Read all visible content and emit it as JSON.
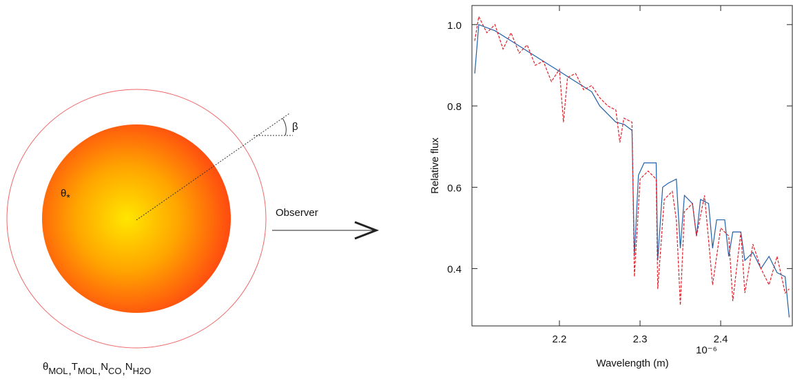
{
  "diagram": {
    "observer": "Observer",
    "beta": "β",
    "theta_star": {
      "symbol": "θ",
      "subscript": "*"
    },
    "separator": ",",
    "parameters": [
      {
        "symbol": "θ",
        "subscript": "MOL"
      },
      {
        "symbol": "T",
        "subscript": "MOL"
      },
      {
        "symbol": "N",
        "subscript": "CO"
      },
      {
        "symbol": "N",
        "subscript": "H2O"
      }
    ]
  },
  "chart_data": {
    "type": "line",
    "xlabel": "Wavelength (m)",
    "ylabel": "Relative flux",
    "x_exponent": "10⁻⁶",
    "xlim": [
      2.0915,
      2.4897
    ],
    "ylim": [
      0.259,
      1.047
    ],
    "xticks": [
      2.2,
      2.3,
      2.4
    ],
    "yticks": [
      0.4,
      0.6,
      0.8,
      {
        "value": 1,
        "label": "1.0"
      }
    ],
    "series": [
      {
        "color": "#1f5fa8",
        "dash": "solid",
        "x": [
          2.095,
          2.1,
          2.12,
          2.14,
          2.16,
          2.18,
          2.2,
          2.22,
          2.24,
          2.25,
          2.26,
          2.27,
          2.28,
          2.29,
          2.293,
          2.298,
          2.305,
          2.32,
          2.322,
          2.328,
          2.335,
          2.345,
          2.35,
          2.355,
          2.365,
          2.37,
          2.375,
          2.385,
          2.39,
          2.395,
          2.405,
          2.41,
          2.415,
          2.425,
          2.43,
          2.44,
          2.45,
          2.46,
          2.47,
          2.48,
          2.485
        ],
        "values": [
          0.88,
          1.0,
          0.985,
          0.96,
          0.935,
          0.91,
          0.885,
          0.86,
          0.835,
          0.8,
          0.78,
          0.76,
          0.755,
          0.74,
          0.43,
          0.63,
          0.66,
          0.66,
          0.42,
          0.6,
          0.61,
          0.62,
          0.45,
          0.58,
          0.56,
          0.48,
          0.57,
          0.56,
          0.45,
          0.52,
          0.52,
          0.43,
          0.49,
          0.49,
          0.42,
          0.44,
          0.4,
          0.43,
          0.39,
          0.38,
          0.28
        ]
      },
      {
        "color": "#e0202a",
        "dash": "dashed",
        "x": [
          2.095,
          2.1,
          2.11,
          2.12,
          2.13,
          2.14,
          2.15,
          2.16,
          2.17,
          2.18,
          2.19,
          2.2,
          2.205,
          2.21,
          2.22,
          2.23,
          2.24,
          2.25,
          2.26,
          2.27,
          2.275,
          2.28,
          2.29,
          2.293,
          2.3,
          2.31,
          2.32,
          2.322,
          2.33,
          2.34,
          2.345,
          2.35,
          2.355,
          2.365,
          2.37,
          2.38,
          2.39,
          2.4,
          2.41,
          2.415,
          2.425,
          2.43,
          2.44,
          2.45,
          2.46,
          2.47,
          2.48,
          2.485
        ],
        "values": [
          0.96,
          1.02,
          0.98,
          1.0,
          0.94,
          0.98,
          0.93,
          0.95,
          0.9,
          0.91,
          0.86,
          0.89,
          0.76,
          0.87,
          0.88,
          0.84,
          0.85,
          0.82,
          0.8,
          0.79,
          0.71,
          0.77,
          0.76,
          0.38,
          0.62,
          0.64,
          0.62,
          0.35,
          0.57,
          0.59,
          0.52,
          0.31,
          0.54,
          0.56,
          0.48,
          0.58,
          0.36,
          0.5,
          0.48,
          0.32,
          0.49,
          0.34,
          0.46,
          0.4,
          0.36,
          0.43,
          0.34,
          0.35
        ]
      }
    ]
  }
}
